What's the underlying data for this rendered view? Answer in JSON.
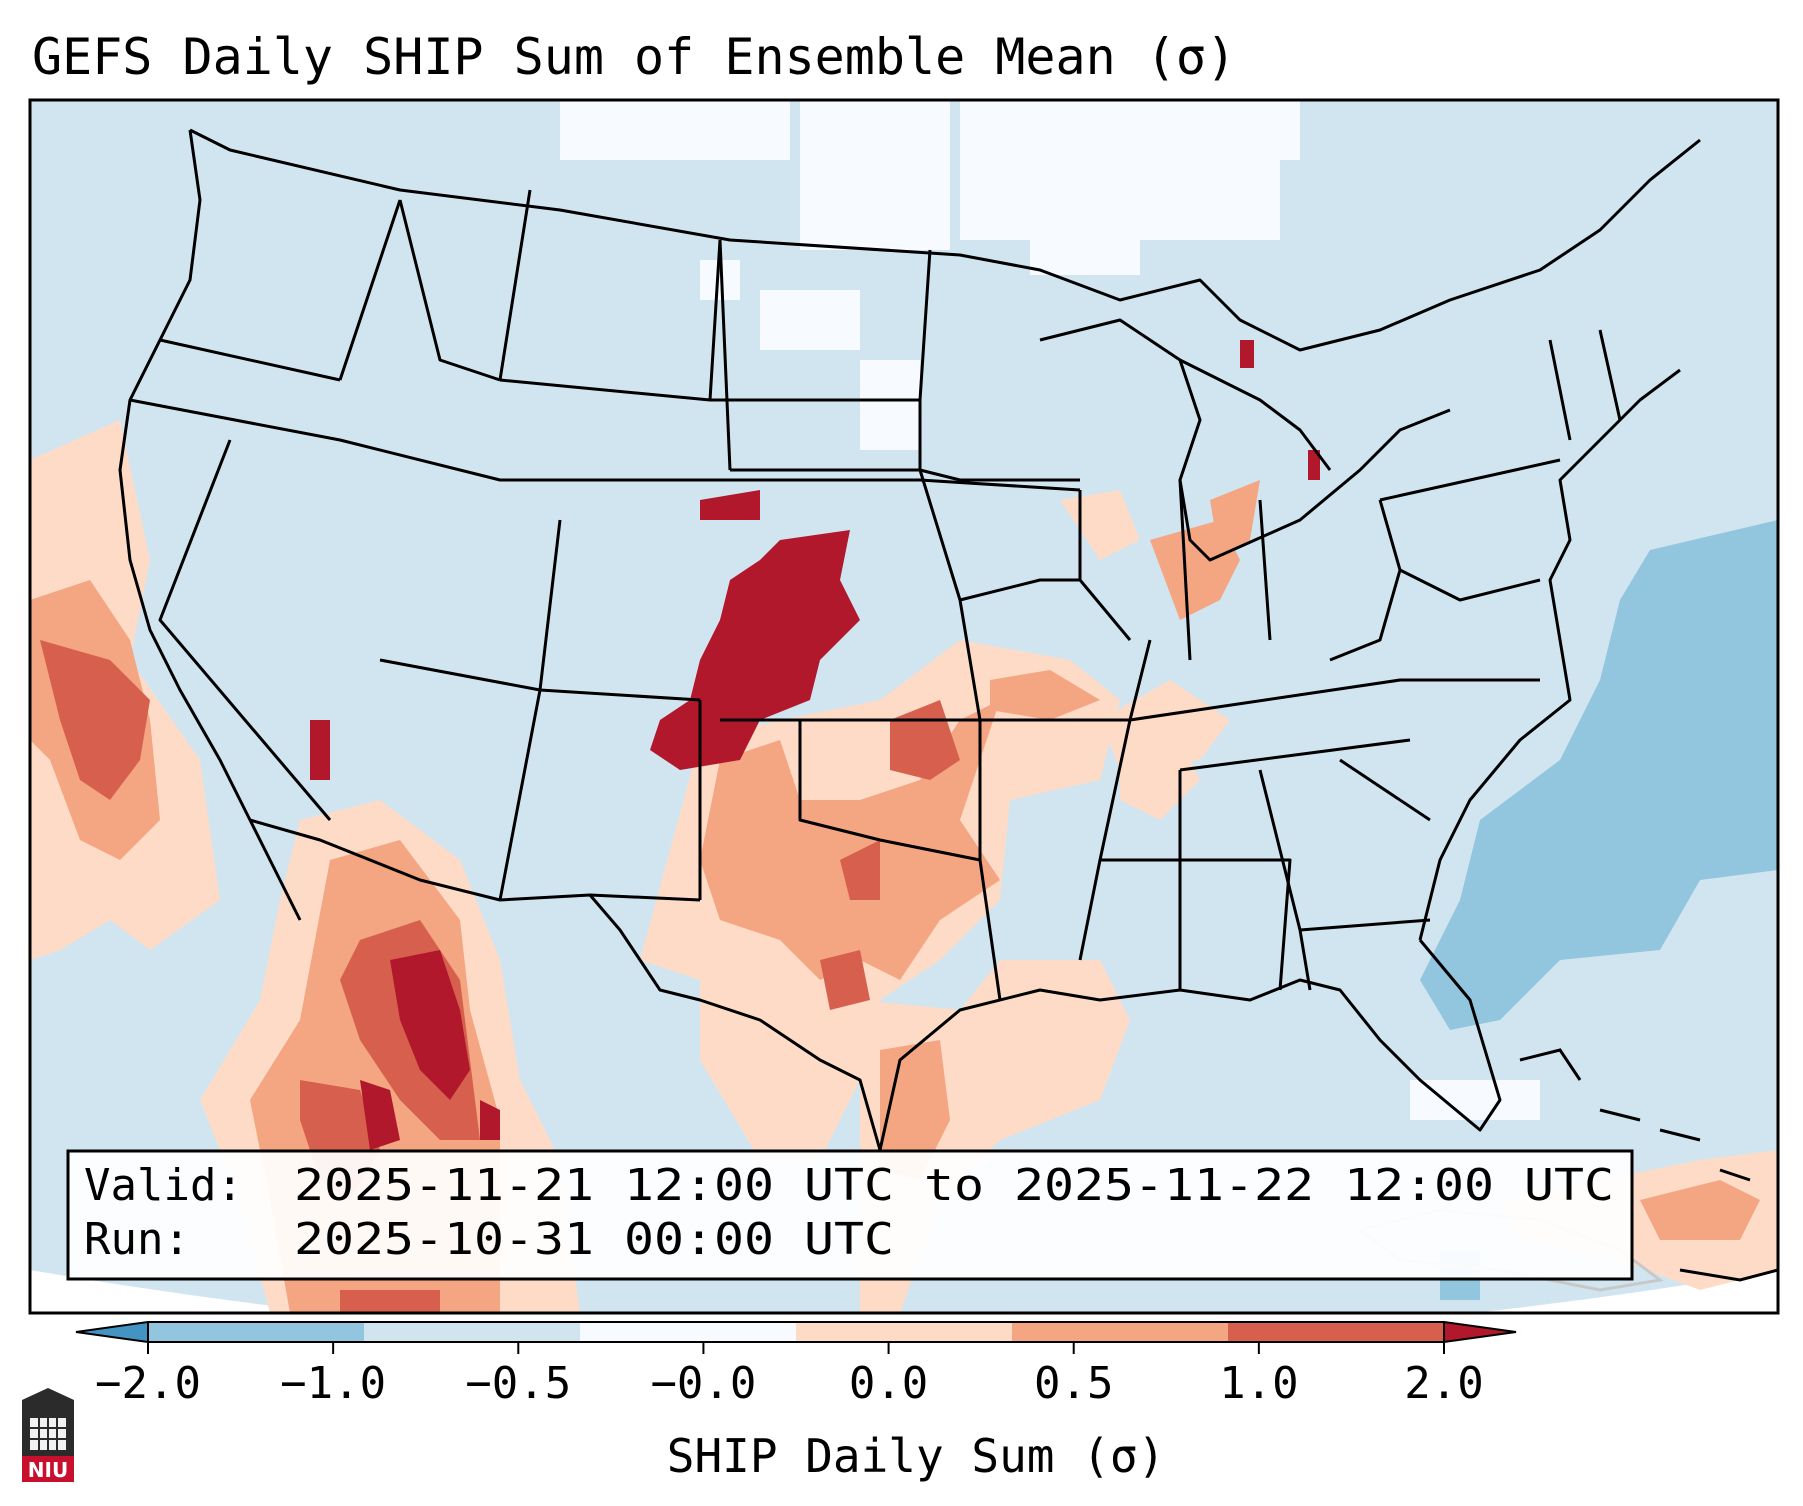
{
  "title": "GEFS Daily SHIP Sum of Ensemble Mean (σ)",
  "info": {
    "valid_label": "Valid:",
    "valid_value": "2025-11-21 12:00 UTC to 2025-11-22 12:00 UTC",
    "run_label": "Run:",
    "run_value": "2025-10-31 00:00 UTC"
  },
  "colorbar": {
    "label": "SHIP Daily Sum (σ)",
    "tick_labels": [
      "−2.0",
      "−1.0",
      "−0.5",
      "−0.0",
      "0.0",
      "0.5",
      "1.0",
      "2.0"
    ],
    "bin_colors": [
      "#4393c3",
      "#92c5de",
      "#d1e5f0",
      "#f7fbff",
      "#fddbc7",
      "#f4a582",
      "#d6604d",
      "#b2182b"
    ]
  },
  "map": {
    "projection": "Lambert Conformal (CONUS)",
    "field_colors": {
      "ocean_background": "#d1e5f0",
      "near_zero": "#f7fbff",
      "slight_negative": "#92c5de",
      "slight_positive": "#fddbc7",
      "moderate_positive": "#f4a582",
      "strong_positive": "#d6604d",
      "extreme_positive": "#b2182b"
    }
  },
  "logo": {
    "text": "NIU",
    "color": "#c8102e"
  }
}
